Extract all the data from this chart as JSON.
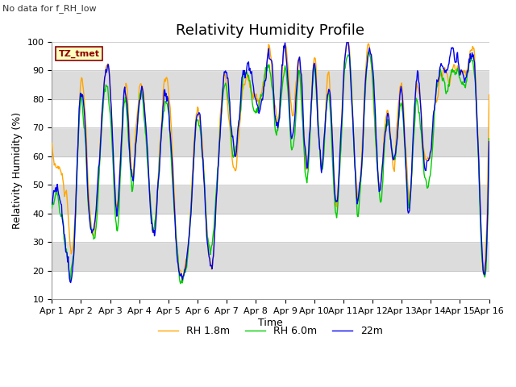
{
  "title": "Relativity Humidity Profile",
  "top_left_text": "No data for f_RH_low",
  "xlabel": "Time",
  "ylabel": "Relativity Humidity (%)",
  "ylim": [
    10,
    100
  ],
  "yticks": [
    10,
    20,
    30,
    40,
    50,
    60,
    70,
    80,
    90,
    100
  ],
  "xtick_labels": [
    "Apr 1",
    "Apr 2",
    "Apr 3",
    "Apr 4",
    "Apr 5",
    "Apr 6",
    "Apr 7",
    "Apr 8",
    "Apr 9",
    "Apr 10",
    "Apr 11",
    "Apr 12",
    "Apr 13",
    "Apr 14",
    "Apr 15",
    "Apr 16"
  ],
  "legend_station": "TZ_tmet",
  "line_colors": {
    "rh18": "#FFA500",
    "rh60": "#00CC00",
    "rh22": "#0000EE"
  },
  "line_labels": {
    "rh18": "RH 1.8m",
    "rh60": "RH 6.0m",
    "rh22": "22m"
  },
  "white_band_color": "#FFFFFF",
  "gray_band_color": "#DCDCDC",
  "plot_bg": "#F5F5F5",
  "line_width": 1.0,
  "title_fontsize": 13,
  "axis_label_fontsize": 9,
  "tick_fontsize": 8,
  "legend_fontsize": 9,
  "knot_t": [
    0,
    0.25,
    0.5,
    0.75,
    1.0,
    1.25,
    1.5,
    1.75,
    2.0,
    2.25,
    2.5,
    2.75,
    3.0,
    3.25,
    3.5,
    3.75,
    4.0,
    4.25,
    4.5,
    4.75,
    5.0,
    5.25,
    5.5,
    5.75,
    6.0,
    6.25,
    6.5,
    6.75,
    7.0,
    7.25,
    7.5,
    7.75,
    8.0,
    8.25,
    8.5,
    8.75,
    9.0,
    9.25,
    9.5,
    9.75,
    10.0,
    10.25,
    10.5,
    10.75,
    11.0,
    11.25,
    11.5,
    11.75,
    12.0,
    12.25,
    12.5,
    12.75,
    13.0,
    13.25,
    13.5,
    13.75,
    14.0,
    14.25,
    14.5,
    14.75,
    15.0
  ],
  "knot_v18": [
    63,
    55,
    44,
    30,
    86,
    50,
    37,
    80,
    84,
    42,
    85,
    55,
    83,
    65,
    36,
    70,
    84,
    37,
    18,
    40,
    78,
    47,
    22,
    68,
    83,
    54,
    77,
    87,
    79,
    84,
    95,
    72,
    99,
    75,
    93,
    55,
    93,
    58,
    88,
    43,
    87,
    91,
    44,
    88,
    90,
    48,
    76,
    58,
    86,
    45,
    83,
    62,
    62,
    84,
    88,
    90,
    92,
    90,
    93,
    29,
    83
  ],
  "knot_v60": [
    41,
    44,
    26,
    28,
    78,
    45,
    35,
    75,
    78,
    36,
    79,
    50,
    79,
    62,
    35,
    65,
    76,
    32,
    17,
    38,
    74,
    45,
    30,
    65,
    85,
    58,
    80,
    86,
    76,
    84,
    90,
    68,
    92,
    62,
    87,
    53,
    90,
    56,
    82,
    40,
    82,
    88,
    41,
    82,
    88,
    46,
    73,
    57,
    78,
    43,
    78,
    57,
    57,
    87,
    85,
    88,
    88,
    88,
    89,
    28,
    65
  ],
  "knot_v22": [
    43,
    46,
    27,
    27,
    82,
    48,
    40,
    80,
    83,
    41,
    83,
    52,
    80,
    65,
    33,
    67,
    78,
    33,
    18,
    39,
    76,
    46,
    20,
    66,
    88,
    62,
    82,
    90,
    80,
    84,
    95,
    72,
    99,
    68,
    95,
    56,
    92,
    57,
    85,
    42,
    85,
    88,
    44,
    83,
    91,
    48,
    74,
    57,
    83,
    43,
    85,
    63,
    63,
    88,
    89,
    96,
    91,
    88,
    90,
    29,
    65
  ]
}
